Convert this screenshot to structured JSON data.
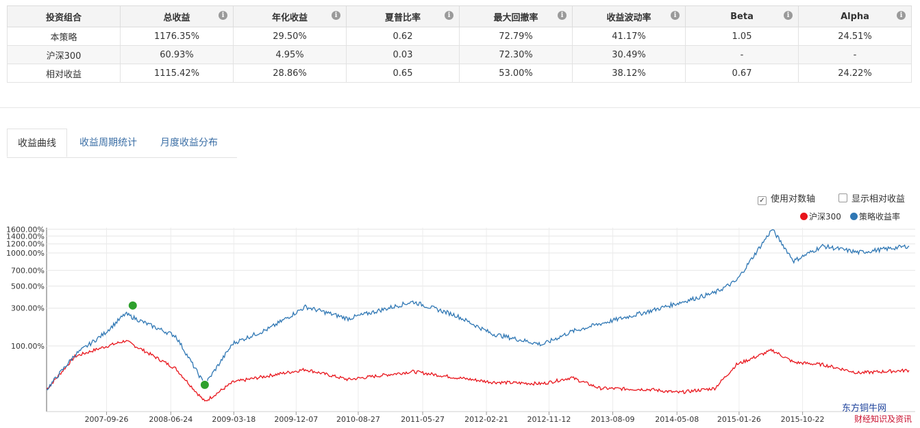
{
  "metrics": {
    "headers": [
      "投资组合",
      "总收益",
      "年化收益",
      "夏普比率",
      "最大回撤率",
      "收益波动率",
      "Beta",
      "Alpha"
    ],
    "rows": [
      [
        "本策略",
        "1176.35%",
        "29.50%",
        "0.62",
        "72.79%",
        "41.17%",
        "1.05",
        "24.51%"
      ],
      [
        "沪深300",
        "60.93%",
        "4.95%",
        "0.03",
        "72.30%",
        "30.49%",
        "-",
        "-"
      ],
      [
        "相对收益",
        "1115.42%",
        "28.86%",
        "0.65",
        "53.00%",
        "38.12%",
        "0.67",
        "24.22%"
      ]
    ],
    "info_glyph": "i"
  },
  "tabs": [
    "收益曲线",
    "收益周期统计",
    "月度收益分布"
  ],
  "controls": {
    "log_axis": {
      "label": "使用对数轴",
      "checked": true,
      "mark": "✓"
    },
    "show_relative": {
      "label": "显示相对收益",
      "checked": false
    }
  },
  "colors": {
    "benchmark": "#e8141b",
    "strategy": "#2f77b4",
    "marker": "#2ea02c"
  },
  "chart_data": {
    "type": "line",
    "log_scale": true,
    "legend_position": "top-right",
    "y_tick_labels": [
      "1600.00%",
      "1400.00%",
      "1200.00%",
      "1000.00%",
      "700.00%",
      "500.00%",
      "300.00%",
      "100.00%"
    ],
    "x_tick_labels": [
      "2007-09-26",
      "2008-06-24",
      "2009-03-18",
      "2009-12-07",
      "2010-08-27",
      "2011-05-27",
      "2012-02-21",
      "2012-11-12",
      "2013-08-09",
      "2014-05-08",
      "2015-01-26",
      "2015-10-22"
    ],
    "x": [
      "2007-01",
      "2007-05",
      "2007-09",
      "2007-12",
      "2008-03",
      "2008-07",
      "2008-11",
      "2009-03",
      "2009-08",
      "2010-01",
      "2010-07",
      "2011-04",
      "2011-10",
      "2012-03",
      "2012-10",
      "2013-02",
      "2013-06",
      "2014-01",
      "2014-05",
      "2014-10",
      "2015-01",
      "2015-06",
      "2015-09",
      "2016-01",
      "2016-06",
      "2017-01"
    ],
    "series": [
      {
        "name": "沪深300",
        "values": [
          -10,
          65,
          96,
          120,
          78,
          32,
          -28,
          3,
          16,
          30,
          8,
          25,
          12,
          3,
          0,
          12,
          -8,
          -10,
          -15,
          -8,
          42,
          85,
          48,
          42,
          22,
          28
        ]
      },
      {
        "name": "策略收益率",
        "values": [
          -10,
          70,
          150,
          260,
          200,
          140,
          -2,
          110,
          175,
          310,
          230,
          350,
          250,
          150,
          105,
          160,
          200,
          280,
          340,
          430,
          560,
          1600,
          850,
          1150,
          1010,
          1150
        ]
      }
    ],
    "markers": [
      {
        "x": "2008-01",
        "value": 320
      },
      {
        "x": "2008-11",
        "value": -2
      }
    ]
  },
  "watermark": {
    "line1": "东方铜牛网",
    "line2": "财经知识及资讯"
  }
}
